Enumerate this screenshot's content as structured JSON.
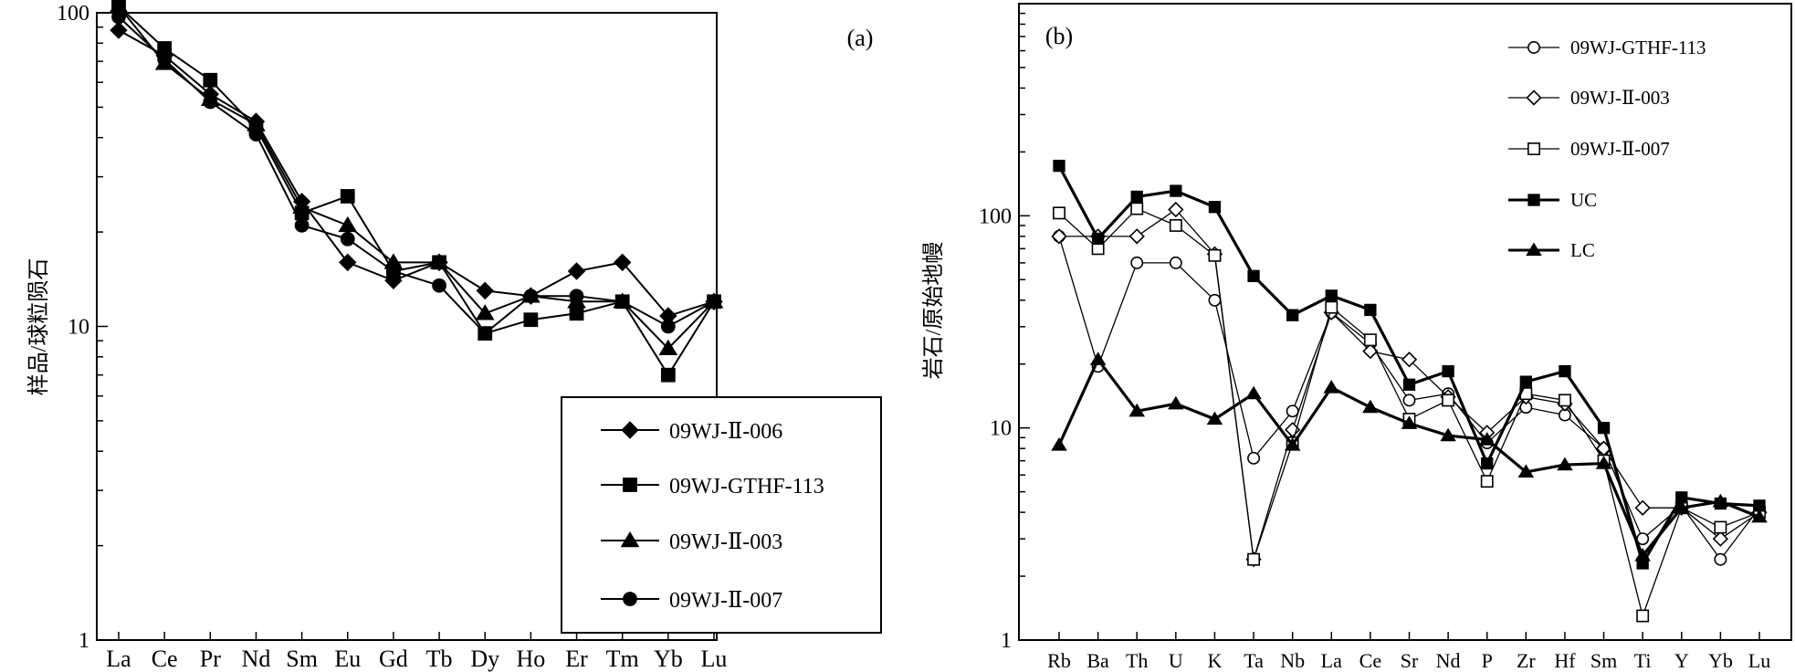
{
  "chart_data": [
    {
      "panel": "(a)",
      "type": "line",
      "yscale": "log",
      "ylim": [
        1,
        100
      ],
      "ylabel": "样品/球粒陨石",
      "xlabel": "",
      "categories": [
        "La",
        "Ce",
        "Pr",
        "Nd",
        "Sm",
        "Eu",
        "Gd",
        "Tb",
        "Dy",
        "Ho",
        "Er",
        "Tm",
        "Yb",
        "Lu"
      ],
      "yticks": [
        "1",
        "10",
        "100"
      ],
      "legend_position": "bottom-right",
      "series": [
        {
          "name": "09WJ-Ⅱ-006",
          "marker": "diamond",
          "values": [
            88,
            73,
            55,
            45,
            25,
            16,
            14,
            16,
            13,
            12.5,
            15,
            16,
            10.8,
            12
          ]
        },
        {
          "name": "09WJ-GTHF-113",
          "marker": "square",
          "values": [
            105,
            77,
            61,
            43,
            23,
            26,
            15,
            16,
            9.5,
            10.5,
            11,
            12,
            7,
            12
          ]
        },
        {
          "name": "09WJ-Ⅱ-003",
          "marker": "triangle",
          "values": [
            105,
            69,
            53,
            44,
            24,
            21,
            16,
            16,
            11,
            12.5,
            12,
            12,
            8.5,
            12
          ]
        },
        {
          "name": "09WJ-Ⅱ-007",
          "marker": "circle",
          "values": [
            97,
            71,
            52,
            41,
            21,
            19,
            15,
            13.5,
            9.5,
            12.5,
            12.5,
            12,
            10,
            12
          ]
        }
      ]
    },
    {
      "panel": "(b)",
      "type": "line",
      "yscale": "log",
      "ylim": [
        1,
        1000
      ],
      "ylabel": "岩石/原始地幔",
      "xlabel": "",
      "categories": [
        "Rb",
        "Ba",
        "Th",
        "U",
        "K",
        "Ta",
        "Nb",
        "La",
        "Ce",
        "Sr",
        "Nd",
        "P",
        "Zr",
        "Hf",
        "Sm",
        "Ti",
        "Y",
        "Yb",
        "Lu"
      ],
      "yticks": [
        "1",
        "10",
        "100"
      ],
      "legend_position": "top-right",
      "series": [
        {
          "name": "09WJ-GTHF-113",
          "marker": "open-circle",
          "bold": false,
          "values": [
            80,
            19.5,
            60,
            60,
            40,
            7.2,
            12,
            35,
            25,
            13.5,
            14.5,
            8.5,
            12.5,
            11.5,
            8,
            3,
            4.3,
            2.4,
            4.2
          ]
        },
        {
          "name": "09WJ-Ⅱ-003",
          "marker": "open-diamond",
          "bold": false,
          "values": [
            80,
            80,
            80,
            107,
            66,
            2.4,
            9.8,
            35,
            23,
            21,
            14,
            9.5,
            14,
            13,
            8,
            4.2,
            4.2,
            3,
            4
          ]
        },
        {
          "name": "09WJ-Ⅱ-007",
          "marker": "open-square",
          "bold": false,
          "values": [
            103,
            70,
            108,
            90,
            65,
            2.4,
            8.5,
            37,
            26,
            11,
            13.5,
            5.6,
            14.5,
            13.5,
            7,
            1.3,
            4.2,
            3.4,
            4
          ]
        },
        {
          "name": "UC",
          "marker": "filled-square",
          "bold": true,
          "values": [
            172,
            78,
            123,
            131,
            110,
            52,
            34,
            42,
            36,
            16,
            18.5,
            6.8,
            16.5,
            18.5,
            10,
            2.3,
            4.7,
            4.4,
            4.3
          ]
        },
        {
          "name": "LC",
          "marker": "filled-triangle",
          "bold": true,
          "values": [
            8.3,
            21,
            12,
            13,
            11,
            14.5,
            8.3,
            15.5,
            12.5,
            10.5,
            9.2,
            8.8,
            6.2,
            6.7,
            6.8,
            2.5,
            4.2,
            4.5,
            3.8
          ]
        }
      ]
    }
  ]
}
